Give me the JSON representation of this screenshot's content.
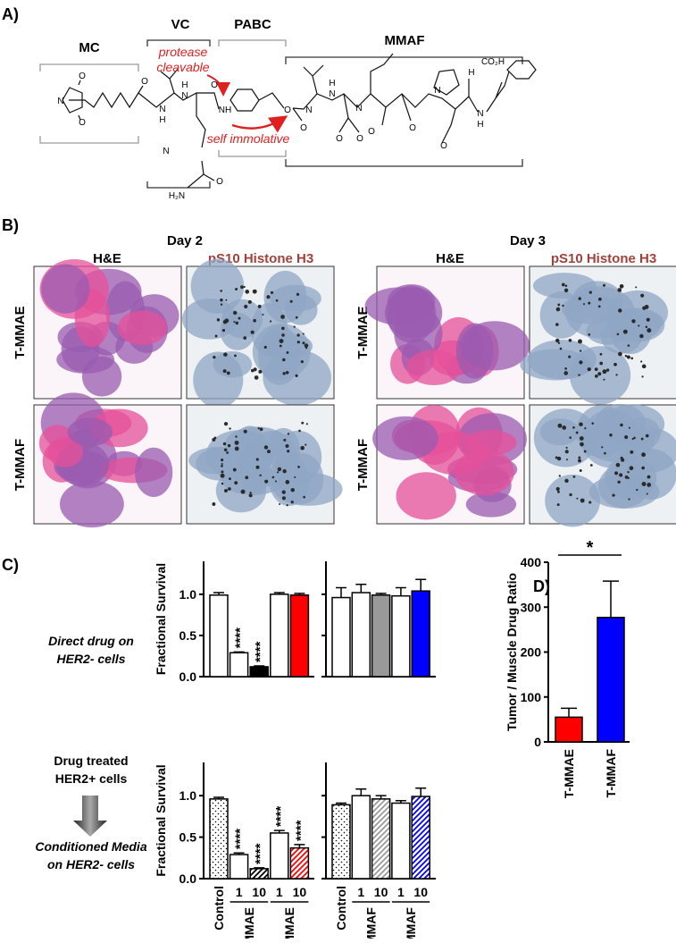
{
  "panel_a": {
    "label": "A)",
    "groups": [
      "MC",
      "VC",
      "PABC",
      "MMAF"
    ],
    "notes": [
      [
        "protease",
        "cleavable"
      ],
      "self immolative"
    ],
    "atoms": [
      "O",
      "N",
      "O",
      "O",
      "H",
      "N",
      "H",
      "N",
      "O",
      "NH",
      "O",
      "O",
      "N",
      "H",
      "N",
      "O",
      "O",
      "N",
      "O",
      "N",
      "O",
      "O",
      "H",
      "N",
      "CO₂H",
      "H",
      "N",
      "O",
      "H₂N"
    ]
  },
  "panel_b": {
    "label": "B)",
    "days": [
      {
        "title": "Day 2",
        "stains": [
          "H&E",
          "pS10 Histone H3"
        ],
        "rows": [
          "T-MMAE",
          "T-MMAF"
        ]
      },
      {
        "title": "Day 3",
        "stains": [
          "H&E",
          "pS10 Histone H3"
        ],
        "rows": [
          "T-MMAE",
          "T-MMAF"
        ]
      }
    ]
  },
  "panel_c": {
    "label": "C)",
    "conditions": [
      [
        "Direct drug on",
        "HER2- cells"
      ],
      [
        "Drug treated",
        "HER2+ cells"
      ],
      [
        "Conditioned Media",
        "on HER2- cells"
      ]
    ]
  },
  "panel_d": {
    "label": "D)"
  },
  "chart_data": [
    {
      "type": "bar",
      "ylabel": "Fractional Survival",
      "values": [
        0.99,
        0.29,
        0.12,
        1.0,
        0.99
      ],
      "errors": [
        0.03,
        0.01,
        0.01,
        0.02,
        0.02
      ],
      "colors": [
        "#ffffff",
        "#ffffff",
        "#000000",
        "#ffffff",
        "#ff0000"
      ],
      "patterns": [
        null,
        null,
        null,
        null,
        null
      ],
      "annotations": [
        null,
        "****",
        "****",
        null,
        null
      ],
      "ylim": [
        0,
        1.4
      ],
      "yticks": [
        {
          "value": 0,
          "label": "0.0"
        },
        {
          "value": 0.5,
          "label": "0.5"
        },
        {
          "value": 1,
          "label": "1.0"
        }
      ]
    },
    {
      "type": "bar",
      "values": [
        0.96,
        1.02,
        0.99,
        0.98,
        1.04
      ],
      "errors": [
        0.12,
        0.1,
        0.02,
        0.1,
        0.14
      ],
      "colors": [
        "#ffffff",
        "#ffffff",
        "#999999",
        "#ffffff",
        "#0000ff"
      ],
      "patterns": [
        null,
        null,
        null,
        null,
        null
      ],
      "ylim": [
        0,
        1.4
      ],
      "yticks": [
        0,
        0.5,
        1
      ]
    },
    {
      "type": "bar",
      "ylabel": "Fractional Survival",
      "categories": [
        "Control",
        "1",
        "10",
        "1",
        "10"
      ],
      "groups": [
        "MMAE",
        "T-MMAE"
      ],
      "values": [
        0.96,
        0.29,
        0.12,
        0.55,
        0.37
      ],
      "errors": [
        0.02,
        0.02,
        0.01,
        0.03,
        0.04
      ],
      "colors": [
        "#000000",
        "#ffffff",
        "#000000",
        "#ffffff",
        "#ff0000"
      ],
      "patterns": [
        "dots",
        null,
        "hatch",
        null,
        "hatch"
      ],
      "annotations": [
        null,
        "****",
        "****",
        "****",
        "****"
      ],
      "ylim": [
        0,
        1.4
      ],
      "yticks": [
        {
          "value": 0,
          "label": "0.0"
        },
        {
          "value": 0.5,
          "label": "0.5"
        },
        {
          "value": 1,
          "label": "1.0"
        }
      ]
    },
    {
      "type": "bar",
      "categories": [
        "Control",
        "1",
        "10",
        "1",
        "10"
      ],
      "groups": [
        "MMAF",
        "T-MMAF"
      ],
      "values": [
        0.89,
        1.0,
        0.96,
        0.91,
        0.99
      ],
      "errors": [
        0.02,
        0.08,
        0.04,
        0.03,
        0.1
      ],
      "colors": [
        "#000000",
        "#ffffff",
        "#999999",
        "#ffffff",
        "#0000ff"
      ],
      "patterns": [
        "dots",
        null,
        "hatch",
        null,
        "hatch"
      ],
      "ylim": [
        0,
        1.4
      ],
      "yticks": [
        0,
        0.5,
        1
      ]
    },
    {
      "type": "bar",
      "ylabel": "Tumor / Muscle Drug Ratio",
      "categories": [
        "T-MMAE",
        "T-MMAF"
      ],
      "values": [
        55,
        277
      ],
      "errors": [
        20,
        81
      ],
      "colors": [
        "#ff0000",
        "#0000ff"
      ],
      "patterns": [
        null,
        null
      ],
      "significance": "*",
      "ylim": [
        0,
        400
      ],
      "yticks": [
        0,
        100,
        200,
        300,
        400
      ]
    }
  ]
}
